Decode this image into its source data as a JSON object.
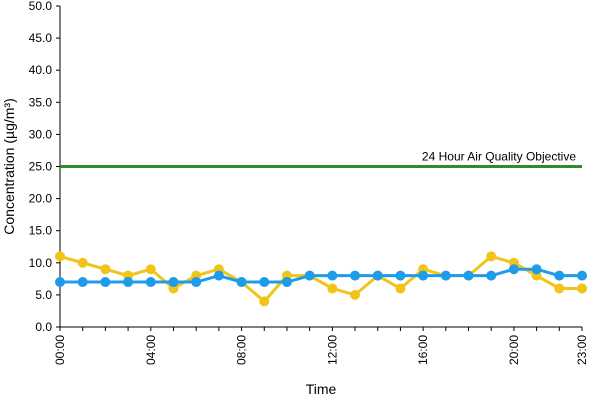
{
  "chart_data": {
    "type": "line",
    "xlabel": "Time",
    "ylabel": "Concentration (µg/m³)",
    "ylim": [
      0,
      50
    ],
    "yticks": [
      "0.0",
      "5.0",
      "10.0",
      "15.0",
      "20.0",
      "25.0",
      "30.0",
      "35.0",
      "40.0",
      "45.0",
      "50.0"
    ],
    "xticks": [
      "00:00",
      "04:00",
      "08:00",
      "12:00",
      "16:00",
      "20:00",
      "23:00"
    ],
    "x": [
      "00:00",
      "01:00",
      "02:00",
      "03:00",
      "04:00",
      "05:00",
      "06:00",
      "07:00",
      "08:00",
      "09:00",
      "10:00",
      "11:00",
      "12:00",
      "13:00",
      "14:00",
      "15:00",
      "16:00",
      "17:00",
      "18:00",
      "19:00",
      "20:00",
      "21:00",
      "22:00",
      "23:00"
    ],
    "grid": false,
    "series": [
      {
        "color": "#f0c419",
        "values": [
          11,
          10,
          9,
          8,
          9,
          6,
          8,
          9,
          7,
          4,
          8,
          8,
          6,
          5,
          8,
          6,
          9,
          8,
          8,
          11,
          10,
          8,
          6,
          6
        ]
      },
      {
        "color": "#1e9be9",
        "values": [
          7,
          7,
          7,
          7,
          7,
          7,
          7,
          8,
          7,
          7,
          7,
          8,
          8,
          8,
          8,
          8,
          8,
          8,
          8,
          8,
          9,
          9,
          8,
          8
        ]
      }
    ],
    "reference_line": {
      "value": 25,
      "label": "24 Hour Air Quality Objective",
      "color": "#2e8b2e"
    }
  }
}
